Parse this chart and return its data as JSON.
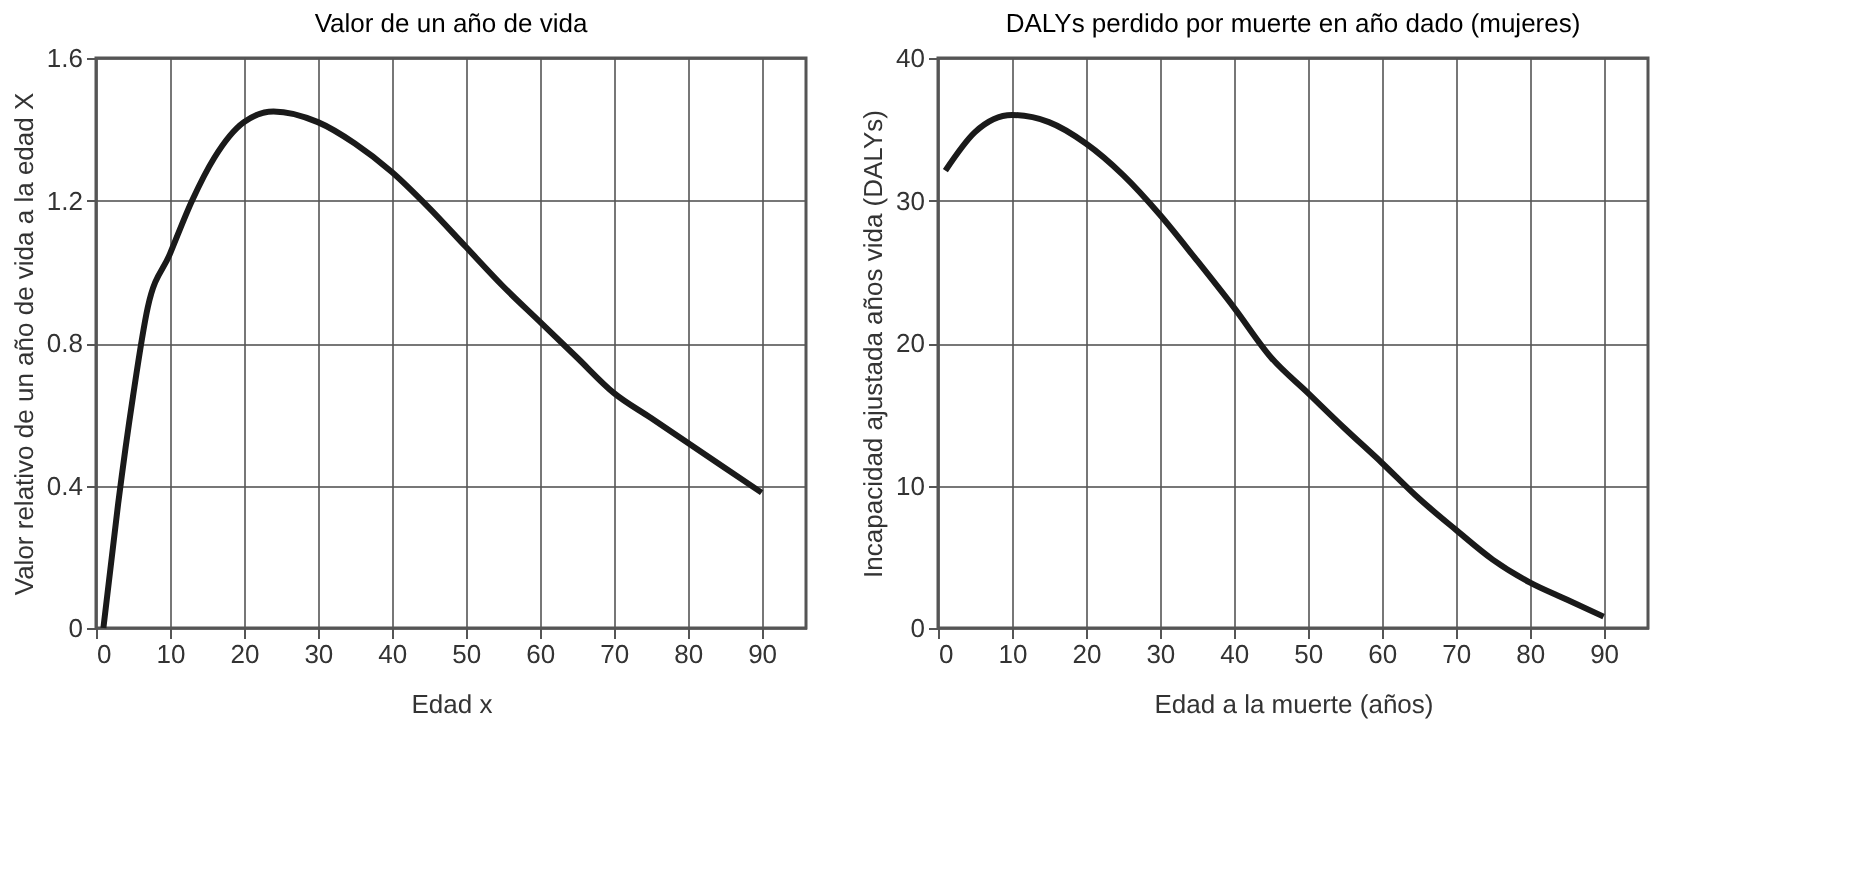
{
  "chart_data": [
    {
      "type": "line",
      "title": "Valor de un año de vida",
      "xlabel": "Edad x",
      "ylabel": "Valor relativo de un año de vida a la edad X",
      "x": [
        1,
        3,
        5,
        7,
        10,
        13,
        16,
        20,
        24,
        30,
        35,
        40,
        45,
        50,
        55,
        60,
        65,
        70,
        75,
        80,
        85,
        90
      ],
      "series": [
        {
          "color": "#1a1a1a",
          "values": [
            0,
            0.35,
            0.65,
            0.9,
            1.05,
            1.2,
            1.32,
            1.42,
            1.45,
            1.42,
            1.36,
            1.28,
            1.18,
            1.07,
            0.96,
            0.86,
            0.76,
            0.66,
            0.59,
            0.52,
            0.45,
            0.38
          ]
        }
      ],
      "xlim": [
        0,
        96
      ],
      "xticks": [
        0,
        10,
        20,
        30,
        40,
        50,
        60,
        70,
        80,
        90
      ],
      "ylim": [
        0,
        1.6
      ],
      "yticks": [
        0,
        0.4,
        0.8,
        1.2,
        1.6
      ],
      "grid": true,
      "marker": "none",
      "line_style": "solid"
    },
    {
      "type": "line",
      "title": "DALYs perdido por muerte en año dado (mujeres)",
      "xlabel": "Edad a la muerte (años)",
      "ylabel": "Incapacidad ajustada años vida (DALYs)",
      "x": [
        1,
        5,
        10,
        15,
        20,
        25,
        30,
        35,
        40,
        45,
        50,
        55,
        60,
        65,
        70,
        75,
        80,
        85,
        90
      ],
      "series": [
        {
          "color": "#1a1a1a",
          "values": [
            32.1,
            34.8,
            36,
            35.5,
            34,
            31.8,
            29,
            25.8,
            22.5,
            19,
            16.5,
            14,
            11.6,
            9.1,
            6.9,
            4.8,
            3.2,
            2,
            0.8
          ]
        }
      ],
      "xlim": [
        0,
        96
      ],
      "xticks": [
        0,
        10,
        20,
        30,
        40,
        50,
        60,
        70,
        80,
        90
      ],
      "ylim": [
        0,
        40
      ],
      "yticks": [
        0,
        10,
        20,
        30,
        40
      ],
      "grid": true,
      "marker": "none",
      "line_style": "solid"
    }
  ]
}
